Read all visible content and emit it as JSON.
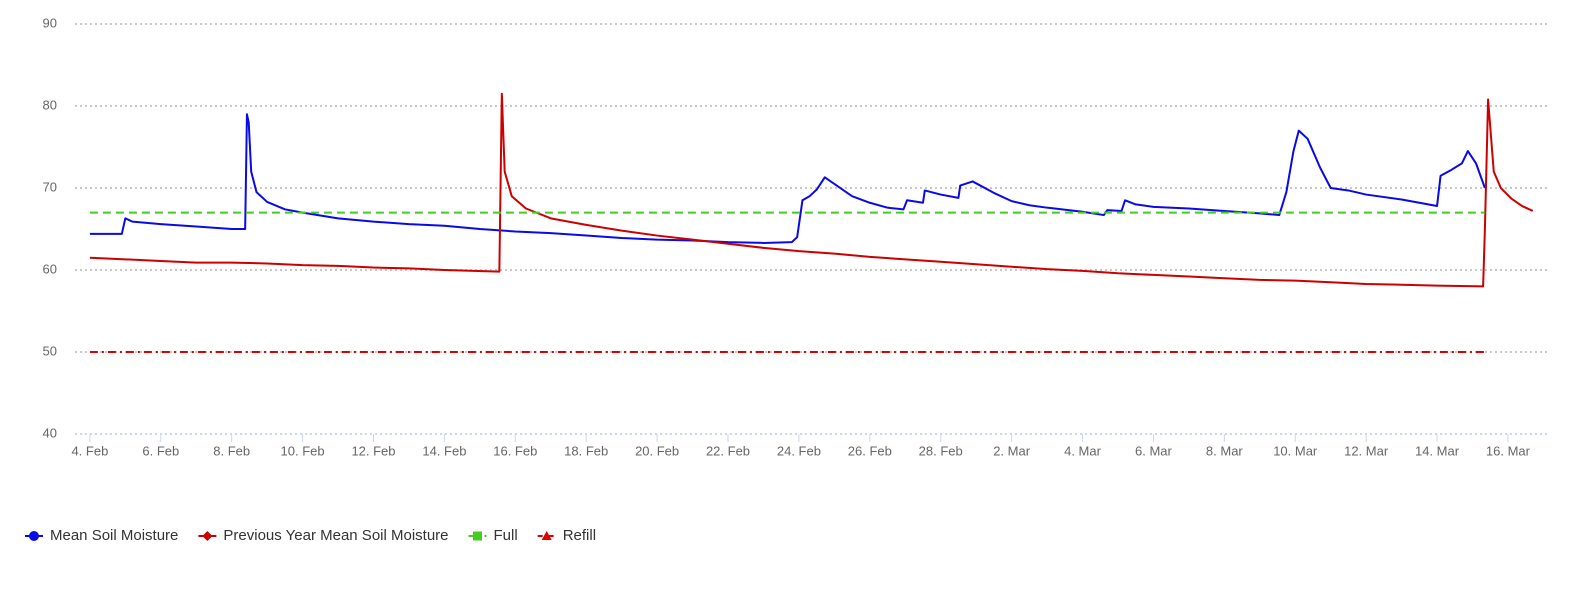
{
  "chart_data": {
    "type": "line",
    "xlim": [
      -0.42,
      41.13
    ],
    "xticks": [
      {
        "value": 0,
        "label": "4. Feb"
      },
      {
        "value": 2,
        "label": "6. Feb"
      },
      {
        "value": 4,
        "label": "8. Feb"
      },
      {
        "value": 6,
        "label": "10. Feb"
      },
      {
        "value": 8,
        "label": "12. Feb"
      },
      {
        "value": 10,
        "label": "14. Feb"
      },
      {
        "value": 12,
        "label": "16. Feb"
      },
      {
        "value": 14,
        "label": "18. Feb"
      },
      {
        "value": 16,
        "label": "20. Feb"
      },
      {
        "value": 18,
        "label": "22. Feb"
      },
      {
        "value": 20,
        "label": "24. Feb"
      },
      {
        "value": 22,
        "label": "26. Feb"
      },
      {
        "value": 24,
        "label": "28. Feb"
      },
      {
        "value": 26,
        "label": "2. Mar"
      },
      {
        "value": 28,
        "label": "4. Mar"
      },
      {
        "value": 30,
        "label": "6. Mar"
      },
      {
        "value": 32,
        "label": "8. Mar"
      },
      {
        "value": 34,
        "label": "10. Mar"
      },
      {
        "value": 36,
        "label": "12. Mar"
      },
      {
        "value": 38,
        "label": "14. Mar"
      },
      {
        "value": 40,
        "label": "16. Mar"
      }
    ],
    "ylim": [
      40,
      90
    ],
    "yticks": [
      40,
      50,
      60,
      70,
      80,
      90
    ],
    "grid": true,
    "legend": "bottom-left",
    "series": [
      {
        "name": "Mean Soil Moisture",
        "color": "#0a0ae6",
        "marker": "circle",
        "dash": "solid",
        "x": [
          0,
          0.9,
          1.0,
          1.2,
          2,
          3,
          4,
          4.38,
          4.43,
          4.48,
          4.55,
          4.7,
          5.0,
          5.5,
          6,
          7,
          8,
          9,
          10,
          11,
          12,
          13,
          14,
          15,
          16,
          17,
          18,
          19,
          19.8,
          19.95,
          20.1,
          20.3,
          20.5,
          20.73,
          21.0,
          21.5,
          22,
          22.5,
          22.95,
          23.05,
          23.5,
          23.55,
          24,
          24.5,
          24.55,
          24.9,
          25.5,
          26,
          26.5,
          27,
          28,
          28.6,
          28.7,
          29.1,
          29.2,
          29.5,
          30,
          31,
          32,
          33,
          33.55,
          33.75,
          33.95,
          34.1,
          34.35,
          34.7,
          35.0,
          35.5,
          36,
          37,
          38.0,
          38.1,
          38.4,
          38.7,
          38.87,
          39.1,
          39.35
        ],
        "values": [
          64.4,
          64.4,
          66.3,
          65.9,
          65.6,
          65.3,
          65.0,
          65.0,
          79.0,
          78.0,
          72.0,
          69.5,
          68.3,
          67.4,
          67.0,
          66.3,
          65.9,
          65.6,
          65.4,
          65.0,
          64.7,
          64.5,
          64.2,
          63.9,
          63.7,
          63.6,
          63.4,
          63.3,
          63.4,
          64.0,
          68.5,
          69.0,
          69.8,
          71.3,
          70.5,
          69.0,
          68.2,
          67.6,
          67.4,
          68.5,
          68.2,
          69.7,
          69.2,
          68.8,
          70.3,
          70.8,
          69.4,
          68.4,
          67.9,
          67.6,
          67.1,
          66.7,
          67.3,
          67.2,
          68.5,
          68.0,
          67.7,
          67.5,
          67.2,
          66.9,
          66.7,
          69.5,
          74.5,
          77.0,
          76.0,
          72.5,
          70.0,
          69.7,
          69.2,
          68.6,
          67.8,
          71.5,
          72.2,
          73.0,
          74.5,
          73.0,
          70.0
        ]
      },
      {
        "name": "Previous Year Mean Soil Moisture",
        "color": "#cc0000",
        "marker": "diamond",
        "dash": "solid",
        "x": [
          0,
          1,
          2,
          3,
          4,
          5,
          6,
          7,
          8,
          9,
          10,
          11.55,
          11.62,
          11.7,
          11.9,
          12.3,
          13,
          14,
          15,
          16,
          17,
          18,
          19,
          20,
          21,
          22,
          23,
          24,
          25,
          26,
          27,
          28,
          29,
          30,
          31,
          32,
          33,
          34,
          35,
          36,
          37,
          38,
          39.3,
          39.35,
          39.44,
          39.6,
          39.8,
          40.1,
          40.4,
          40.7
        ],
        "values": [
          61.5,
          61.3,
          61.1,
          60.9,
          60.9,
          60.8,
          60.6,
          60.5,
          60.3,
          60.2,
          60.0,
          59.8,
          81.5,
          72.0,
          69.0,
          67.5,
          66.3,
          65.5,
          64.8,
          64.2,
          63.7,
          63.2,
          62.7,
          62.3,
          62.0,
          61.6,
          61.3,
          61.0,
          60.7,
          60.4,
          60.1,
          59.9,
          59.6,
          59.4,
          59.2,
          59.0,
          58.8,
          58.7,
          58.5,
          58.3,
          58.2,
          58.1,
          58.0,
          65.0,
          80.8,
          72.0,
          70.0,
          68.7,
          67.8,
          67.2
        ]
      },
      {
        "name": "Full",
        "color": "#44cc22",
        "marker": "square",
        "dash": "dashed",
        "x": [
          0,
          39.35
        ],
        "values": [
          67,
          67
        ]
      },
      {
        "name": "Refill",
        "color": "#dd0000",
        "marker": "triangle",
        "dash": "dashdot",
        "x": [
          0,
          39.35
        ],
        "values": [
          50,
          50
        ]
      }
    ]
  }
}
